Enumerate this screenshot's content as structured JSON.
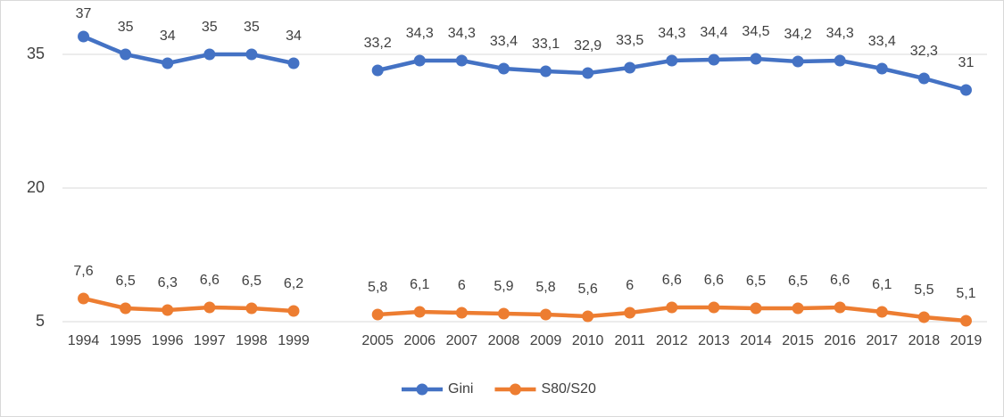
{
  "chart_data": {
    "type": "line",
    "categories": [
      "1994",
      "1995",
      "1996",
      "1997",
      "1998",
      "1999",
      null,
      "2005",
      "2006",
      "2007",
      "2008",
      "2009",
      "2010",
      "2011",
      "2012",
      "2013",
      "2014",
      "2015",
      "2016",
      "2017",
      "2018",
      "2019"
    ],
    "series": [
      {
        "name": "Gini",
        "color": "#4472c4",
        "values": [
          37,
          35,
          34,
          35,
          35,
          34,
          null,
          33.2,
          34.3,
          34.3,
          33.4,
          33.1,
          32.9,
          33.5,
          34.3,
          34.4,
          34.5,
          34.2,
          34.3,
          33.4,
          32.3,
          31
        ],
        "value_labels": [
          "37",
          "35",
          "34",
          "35",
          "35",
          "34",
          null,
          "33,2",
          "34,3",
          "34,3",
          "33,4",
          "33,1",
          "32,9",
          "33,5",
          "34,3",
          "34,4",
          "34,5",
          "34,2",
          "34,3",
          "33,4",
          "32,3",
          "31"
        ]
      },
      {
        "name": "S80/S20",
        "color": "#ed7d31",
        "values": [
          7.6,
          6.5,
          6.3,
          6.6,
          6.5,
          6.2,
          null,
          5.8,
          6.1,
          6,
          5.9,
          5.8,
          5.6,
          6,
          6.6,
          6.6,
          6.5,
          6.5,
          6.6,
          6.1,
          5.5,
          5.1
        ],
        "value_labels": [
          "7,6",
          "6,5",
          "6,3",
          "6,6",
          "6,5",
          "6,2",
          null,
          "5,8",
          "6,1",
          "6",
          "5,9",
          "5,8",
          "5,6",
          "6",
          "6,6",
          "6,6",
          "6,5",
          "6,5",
          "6,6",
          "6,1",
          "5,5",
          "5,1"
        ]
      }
    ],
    "ylim": [
      5,
      40
    ],
    "yticks": [
      5,
      20,
      35
    ],
    "grid": true,
    "legend": "bottom"
  }
}
